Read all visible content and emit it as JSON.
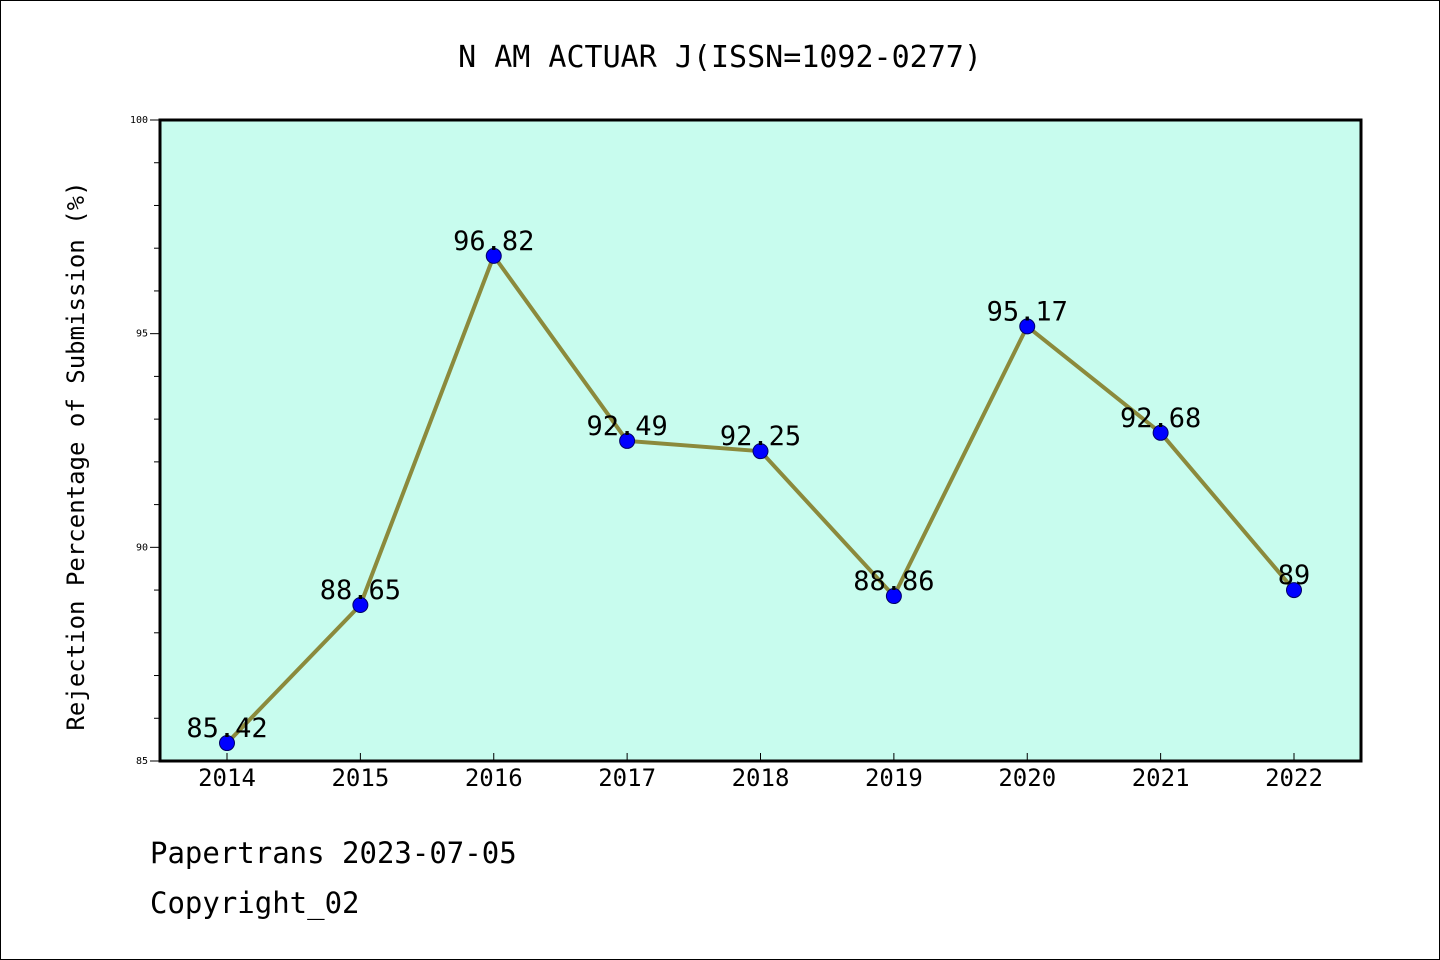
{
  "chart_data": {
    "type": "line",
    "title": "N AM ACTUAR J(ISSN=1092-0277)",
    "xlabel": "",
    "ylabel": "Rejection Percentage of Submission (%)",
    "categories": [
      "2014",
      "2015",
      "2016",
      "2017",
      "2018",
      "2019",
      "2020",
      "2021",
      "2022"
    ],
    "series": [
      {
        "values": [
          85.42,
          88.65,
          96.82,
          92.49,
          92.25,
          88.86,
          95.17,
          92.68,
          89
        ],
        "labels": [
          "85.42",
          "88.65",
          "96.82",
          "92.49",
          "92.25",
          "88.86",
          "95.17",
          "92.68",
          "89"
        ]
      }
    ],
    "ylim": [
      85,
      100
    ],
    "yticks": [
      85,
      90,
      95,
      100
    ],
    "ytick_labels": [
      "85",
      "90",
      "95",
      "100"
    ],
    "grid": false,
    "legend": "none",
    "colors": {
      "plot_background": "#c8fcee",
      "line": "#8b8a3c",
      "marker": "#0000ff"
    }
  },
  "footer": {
    "line1": "Papertrans 2023-07-05",
    "line2": "Copyright_02"
  }
}
